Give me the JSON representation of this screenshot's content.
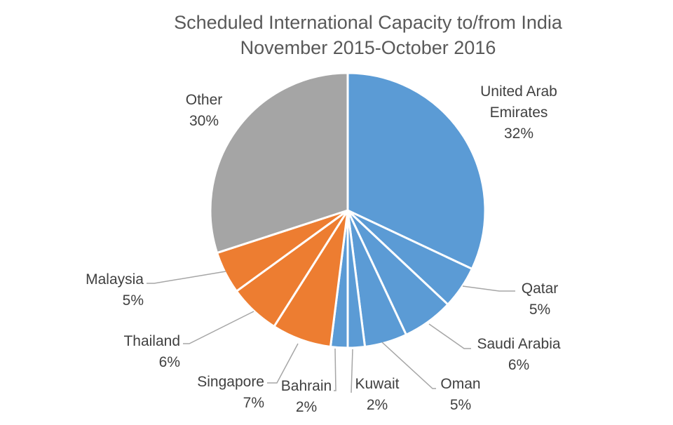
{
  "chart_data": {
    "type": "pie",
    "title": "Scheduled International Capacity to/from India",
    "subtitle": "November 2015-October 2016",
    "unit": "%",
    "slices": [
      {
        "label": "United Arab Emirates",
        "value": 32,
        "value_label": "32%",
        "color": "#5b9bd5"
      },
      {
        "label": "Qatar",
        "value": 5,
        "value_label": "5%",
        "color": "#5b9bd5"
      },
      {
        "label": "Saudi Arabia",
        "value": 6,
        "value_label": "6%",
        "color": "#5b9bd5"
      },
      {
        "label": "Oman",
        "value": 5,
        "value_label": "5%",
        "color": "#5b9bd5"
      },
      {
        "label": "Kuwait",
        "value": 2,
        "value_label": "2%",
        "color": "#5b9bd5"
      },
      {
        "label": "Bahrain",
        "value": 2,
        "value_label": "2%",
        "color": "#5b9bd5"
      },
      {
        "label": "Singapore",
        "value": 7,
        "value_label": "7%",
        "color": "#ed7d31"
      },
      {
        "label": "Thailand",
        "value": 6,
        "value_label": "6%",
        "color": "#ed7d31"
      },
      {
        "label": "Malaysia",
        "value": 5,
        "value_label": "5%",
        "color": "#ed7d31"
      },
      {
        "label": "Other",
        "value": 30,
        "value_label": "30%",
        "color": "#a5a5a5"
      }
    ]
  }
}
